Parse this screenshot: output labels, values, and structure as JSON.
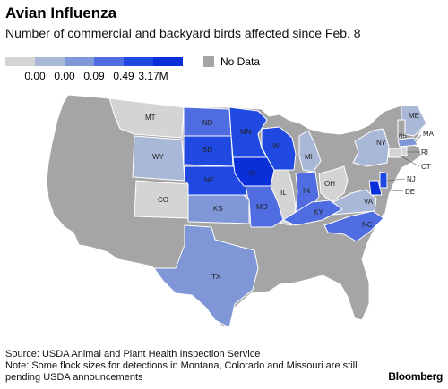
{
  "title": "Avian Influenza",
  "subtitle": "Number of commercial and backyard birds affected since Feb. 8",
  "legend": {
    "swatch_colors": [
      "#d4d4d4",
      "#a9b8d6",
      "#7f97d6",
      "#4f6ce0",
      "#1f49e0",
      "#0a2fd8"
    ],
    "labels": [
      "0.00",
      "0.00",
      "0.09",
      "0.49",
      "3.17M"
    ],
    "no_data_label": "No Data",
    "no_data_color": "#a5a5a5"
  },
  "states": {
    "MT": "MT",
    "WY": "WY",
    "CO": "CO",
    "ND": "ND",
    "SD": "SD",
    "NE": "NE",
    "KS": "KS",
    "TX": "TX",
    "MN": "MN",
    "IA": "IA",
    "MO": "MO",
    "WI": "WI",
    "IL": "IL",
    "MI": "MI",
    "IN": "IN",
    "OH": "OH",
    "KY": "KY",
    "NC": "NC",
    "VA": "VA",
    "NY": "NY",
    "ME": "ME",
    "NH": "NH",
    "MA": "MA",
    "RI": "RI",
    "CT": "CT",
    "NJ": "NJ",
    "DE": "DE"
  },
  "footer": {
    "source": "Source: USDA Animal and Plant Health Inspection Service",
    "note_line1": "Note: Some flock sizes for detections in Montana, Colorado and Missouri are still",
    "note_line2": "pending USDA announcements"
  },
  "brand": "Bloomberg"
}
